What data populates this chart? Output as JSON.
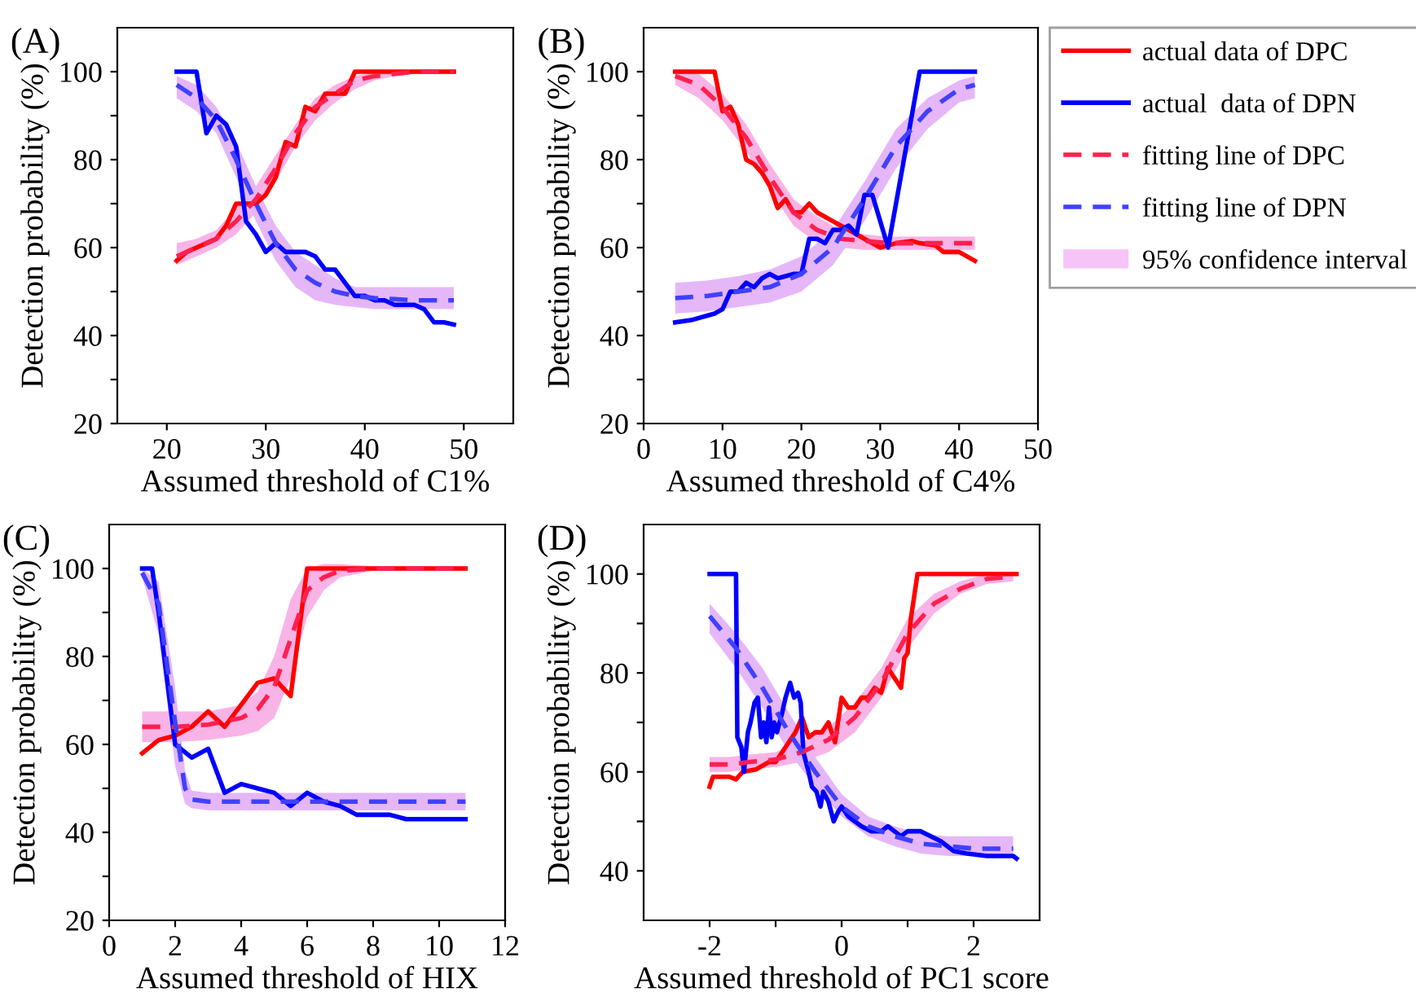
{
  "chart_data": [
    {
      "type": "line",
      "annotations": [
        "(A)"
      ],
      "xlabel": "Assumed threshold of C1%",
      "ylabel": "Detection probability (%)",
      "xlim": [
        15,
        55
      ],
      "xticks": [
        20,
        30,
        40,
        50
      ],
      "ylim": [
        20,
        110
      ],
      "yticks": [
        20,
        {
          "value": 30,
          "label": null
        },
        40,
        {
          "value": 50,
          "label": null
        },
        60,
        {
          "value": 70,
          "label": null
        },
        80,
        {
          "value": 90,
          "label": null
        },
        100
      ],
      "grid": false,
      "legend": false,
      "series": [
        {
          "color": "#ff0000",
          "line_style": "solid",
          "x": [
            21,
            22,
            23,
            24,
            25,
            26,
            27,
            28,
            29,
            30,
            31,
            32,
            33,
            34,
            35,
            36,
            37,
            38,
            39,
            49
          ],
          "values": [
            57,
            59,
            60,
            61,
            62,
            65,
            70,
            70,
            70,
            72,
            76,
            84,
            83,
            92,
            91,
            95,
            95,
            95,
            100,
            100
          ]
        },
        {
          "color": "#0000ff",
          "line_style": "solid",
          "x": [
            21,
            23,
            24,
            25,
            26,
            27,
            28,
            29,
            30,
            31,
            32,
            33,
            34,
            35,
            36,
            37,
            38,
            39,
            40,
            41,
            42,
            43,
            44,
            45,
            46,
            47,
            48,
            49
          ],
          "values": [
            100,
            100,
            86,
            90,
            88,
            83,
            66,
            63,
            59,
            61,
            59,
            59,
            59,
            58,
            55,
            55,
            52,
            49,
            49,
            48,
            48,
            47,
            47,
            47,
            46,
            43,
            43,
            42.5
          ]
        },
        {
          "color": "#ff2050",
          "line_style": "dashed",
          "x": [
            21,
            23,
            25,
            27,
            29,
            31,
            33,
            35,
            37,
            39,
            41,
            43,
            45,
            49
          ],
          "values": [
            58,
            60,
            62,
            66,
            71,
            78,
            86,
            92,
            95,
            98,
            99,
            99.5,
            100,
            100
          ],
          "lower": [
            56,
            58,
            60,
            63,
            68,
            75,
            83,
            89,
            93,
            96,
            98,
            99,
            99.5,
            99.5
          ],
          "upper": [
            61,
            62,
            64,
            69,
            74,
            81,
            88,
            94,
            97,
            99,
            100,
            100,
            100.5,
            100.5
          ]
        },
        {
          "color": "#4040ff",
          "line_style": "dashed",
          "x": [
            21,
            23,
            25,
            27,
            29,
            31,
            33,
            35,
            37,
            39,
            41,
            43,
            45,
            49
          ],
          "values": [
            97,
            94,
            89,
            80,
            70,
            61,
            55,
            52,
            50,
            49,
            48.5,
            48.3,
            48,
            48
          ],
          "lower": [
            94,
            91,
            86,
            76,
            66,
            57,
            51,
            48,
            47,
            46.5,
            46,
            46,
            46,
            46
          ],
          "upper": [
            99,
            97,
            92,
            84,
            74,
            65,
            59,
            56,
            53,
            51,
            51,
            51,
            51,
            51
          ]
        }
      ]
    },
    {
      "type": "line",
      "annotations": [
        "(B)",
        "95% confidence interval"
      ],
      "xlabel": "Assumed threshold of C4%",
      "ylabel": "Detection probability (%)",
      "xlim": [
        0,
        50
      ],
      "xticks": [
        0,
        10,
        20,
        30,
        40,
        50
      ],
      "ylim": [
        20,
        110
      ],
      "yticks": [
        20,
        {
          "value": 30,
          "label": null
        },
        40,
        {
          "value": 50,
          "label": null
        },
        60,
        {
          "value": 70,
          "label": null
        },
        80,
        {
          "value": 90,
          "label": null
        },
        100
      ],
      "grid": false,
      "legend": "right",
      "series": [
        {
          "name": "actual data of DPC",
          "color": "#ff0000",
          "line_style": "solid",
          "x": [
            4,
            9,
            10,
            11,
            12,
            13,
            14,
            15,
            16,
            17,
            18,
            19,
            20,
            21,
            22,
            23,
            24,
            25,
            26,
            27,
            28,
            29,
            30,
            32,
            34,
            35,
            37,
            38,
            40,
            42
          ],
          "values": [
            100,
            100,
            91,
            92,
            88,
            80,
            79,
            77,
            74,
            69,
            71,
            68,
            68,
            70,
            68,
            67,
            66,
            65,
            64,
            63,
            62,
            61,
            60,
            61,
            61.5,
            61,
            60.5,
            59,
            59,
            57
          ]
        },
        {
          "name": "actual  data of DPN",
          "color": "#0000ff",
          "line_style": "solid",
          "x": [
            4,
            6,
            9,
            10,
            11,
            12,
            13,
            14,
            15,
            16,
            17,
            19,
            20,
            21,
            22,
            23,
            24,
            25,
            26,
            27,
            28,
            29,
            31,
            35,
            42
          ],
          "values": [
            43,
            43.5,
            45,
            46,
            50,
            50,
            52,
            51,
            53,
            54,
            53,
            54,
            54,
            62,
            62,
            61,
            64,
            64,
            65,
            63,
            72,
            72,
            60,
            100,
            100
          ]
        },
        {
          "name": "fitting line of DPC",
          "color": "#ff2050",
          "line_style": "dashed",
          "x": [
            4,
            7,
            10,
            13,
            16,
            19,
            22,
            25,
            28,
            31,
            34,
            37,
            42
          ],
          "values": [
            99,
            97,
            92,
            85,
            76,
            68,
            64,
            62,
            61.5,
            61,
            61,
            61,
            61
          ],
          "lower": [
            97,
            94,
            89,
            82,
            73,
            65,
            61,
            60,
            59.5,
            59.5,
            59.5,
            59.5,
            59.5
          ],
          "upper": [
            100,
            99.5,
            95,
            88,
            79,
            71,
            67,
            64,
            63,
            62.5,
            62.5,
            62.5,
            62.5
          ]
        },
        {
          "name": "fitting line of DPN",
          "color": "#4040ff",
          "line_style": "dashed",
          "x": [
            4,
            8,
            12,
            16,
            20,
            24,
            28,
            32,
            36,
            40,
            42
          ],
          "values": [
            48.5,
            49,
            50,
            51,
            54,
            60,
            71,
            83,
            91,
            96,
            97
          ],
          "lower": [
            45,
            45.5,
            46.5,
            47.5,
            50,
            56,
            66,
            78,
            87,
            93,
            94
          ],
          "upper": [
            52,
            52.5,
            53.5,
            55,
            58,
            64,
            75,
            87,
            94,
            98,
            99
          ]
        }
      ]
    },
    {
      "type": "line",
      "annotations": [
        "(C)"
      ],
      "xlabel": "Assumed threshold of HIX",
      "ylabel": "Detection probability (%)",
      "xlim": [
        0,
        12
      ],
      "xticks": [
        0,
        2,
        4,
        6,
        8,
        10,
        12
      ],
      "ylim": [
        20,
        110
      ],
      "yticks": [
        20,
        {
          "value": 30,
          "label": null
        },
        40,
        {
          "value": 50,
          "label": null
        },
        60,
        {
          "value": 70,
          "label": null
        },
        80,
        {
          "value": 90,
          "label": null
        },
        100
      ],
      "grid": false,
      "legend": false,
      "series": [
        {
          "color": "#ff0000",
          "line_style": "solid",
          "x": [
            1,
            1.5,
            2,
            2.5,
            3,
            3.5,
            4,
            4.5,
            5,
            5.5,
            6,
            10.8
          ],
          "values": [
            58,
            61,
            62,
            64,
            67.5,
            64,
            69,
            74,
            75,
            71,
            100,
            100
          ]
        },
        {
          "color": "#0000ff",
          "line_style": "solid",
          "x": [
            1,
            1.3,
            1.5,
            2,
            2.5,
            3,
            3.5,
            4,
            4.5,
            5,
            5.5,
            6,
            6.5,
            7,
            7.5,
            8.5,
            9,
            10.8
          ],
          "values": [
            100,
            100,
            90,
            60,
            57,
            59,
            49,
            51,
            50,
            49,
            46,
            49,
            47,
            46,
            44,
            44,
            43,
            43
          ]
        },
        {
          "color": "#ff2050",
          "line_style": "dashed",
          "x": [
            1,
            2,
            3,
            4,
            4.5,
            5,
            5.5,
            6,
            6.5,
            7,
            8,
            10.8
          ],
          "values": [
            64,
            64,
            64.5,
            66,
            68,
            73,
            84,
            95,
            98,
            99.5,
            100,
            100
          ],
          "lower": [
            60.5,
            60.5,
            61,
            62,
            63,
            66,
            75,
            89,
            95,
            98,
            99.5,
            99.5
          ],
          "upper": [
            67.5,
            67.5,
            67.5,
            69,
            72,
            80,
            93,
            100,
            101,
            101,
            100.5,
            100.5
          ]
        },
        {
          "color": "#4040ff",
          "line_style": "dashed",
          "x": [
            1,
            1.5,
            2,
            2.3,
            2.5,
            3,
            5,
            10.8
          ],
          "values": [
            99,
            92,
            65,
            50,
            47.5,
            47,
            47,
            47
          ],
          "lower": [
            98,
            85,
            55,
            46.5,
            45.5,
            45,
            45,
            45
          ],
          "upper": [
            100,
            97,
            73,
            54,
            49.5,
            49,
            49,
            49
          ]
        }
      ]
    },
    {
      "type": "line",
      "annotations": [
        "(D)"
      ],
      "xlabel": "Assumed threshold of PC1 score",
      "ylabel": "Detection probability (%)",
      "xlim": [
        -3,
        3
      ],
      "xticks": [
        {
          "value": -2,
          "label": "-2"
        },
        {
          "value": -1,
          "label": null
        },
        0,
        {
          "value": 1,
          "label": null
        },
        2
      ],
      "ylim": [
        30,
        110
      ],
      "yticks": [
        40,
        {
          "value": 50,
          "label": null
        },
        60,
        {
          "value": 70,
          "label": null
        },
        80,
        {
          "value": 90,
          "label": null
        },
        100
      ],
      "grid": false,
      "legend": false,
      "series": [
        {
          "color": "#ff0000",
          "line_style": "solid",
          "x": [
            -2,
            -1.95,
            -1.7,
            -1.6,
            -1.5,
            -1.3,
            -1.1,
            -1,
            -0.9,
            -0.8,
            -0.7,
            -0.6,
            -0.5,
            -0.4,
            -0.3,
            -0.2,
            -0.1,
            0,
            0.1,
            0.2,
            0.3,
            0.4,
            0.5,
            0.6,
            0.7,
            0.8,
            0.9,
            0.95,
            1,
            1.05,
            1.15,
            2.65
          ],
          "values": [
            57,
            59,
            59,
            58.5,
            60,
            60.5,
            62,
            62,
            64,
            66,
            68,
            71,
            67,
            68,
            68,
            70,
            66,
            75,
            73,
            73,
            75,
            75,
            77,
            76,
            81,
            79,
            77,
            83,
            84,
            91,
            100,
            100
          ]
        },
        {
          "color": "#0000ff",
          "line_style": "solid",
          "x": [
            -2,
            -1.6,
            -1.58,
            -1.52,
            -1.48,
            -1.42,
            -1.38,
            -1.32,
            -1.27,
            -1.22,
            -1.18,
            -1.14,
            -1.1,
            -1.06,
            -1.02,
            -0.98,
            -0.9,
            -0.85,
            -0.78,
            -0.72,
            -0.66,
            -0.62,
            -0.58,
            -0.5,
            -0.45,
            -0.38,
            -0.32,
            -0.28,
            -0.2,
            -0.12,
            -0.05,
            0,
            0.1,
            0.2,
            0.3,
            0.45,
            0.6,
            0.7,
            0.8,
            0.9,
            1,
            1.2,
            1.35,
            1.5,
            1.7,
            1.9,
            2.2,
            2.6,
            2.65
          ],
          "values": [
            100,
            100,
            67,
            65,
            60,
            68,
            70,
            74,
            75,
            67,
            70,
            66,
            73,
            67,
            70,
            68,
            72,
            75,
            78,
            75,
            76,
            74,
            64,
            60,
            57,
            56,
            53,
            56,
            54,
            50,
            52,
            53,
            51,
            50,
            49,
            48,
            48,
            49,
            48,
            47,
            48,
            48,
            47,
            46,
            44,
            43.5,
            43,
            43,
            42.5
          ]
        },
        {
          "color": "#ff2050",
          "line_style": "dashed",
          "x": [
            -2,
            -1.7,
            -1.4,
            -1,
            -0.6,
            -0.2,
            0.2,
            0.6,
            1,
            1.4,
            1.8,
            2.2,
            2.6
          ],
          "values": [
            61.5,
            61.5,
            62,
            62.5,
            64,
            66.5,
            71,
            78,
            88,
            94,
            97,
            99,
            99.5
          ],
          "lower": [
            60,
            60,
            60.5,
            61,
            62,
            64,
            68,
            75,
            85,
            92,
            96,
            98,
            98.5
          ],
          "upper": [
            63,
            63,
            63.5,
            64,
            66,
            69,
            74,
            81,
            91,
            96,
            98.5,
            100,
            100.5
          ]
        },
        {
          "color": "#4040ff",
          "line_style": "dashed",
          "x": [
            -2,
            -1.6,
            -1.2,
            -0.8,
            -0.4,
            0,
            0.4,
            0.8,
            1.2,
            1.6,
            2,
            2.6
          ],
          "values": [
            91.5,
            85,
            77,
            68,
            60,
            53,
            49,
            47,
            45.5,
            45,
            44.5,
            44.5
          ],
          "lower": [
            88,
            81,
            73,
            64,
            57,
            51,
            47,
            45,
            43.5,
            43,
            43,
            43
          ],
          "upper": [
            94,
            88,
            81,
            72,
            63,
            55.5,
            51,
            49,
            47.5,
            47,
            47,
            47
          ]
        }
      ]
    }
  ]
}
